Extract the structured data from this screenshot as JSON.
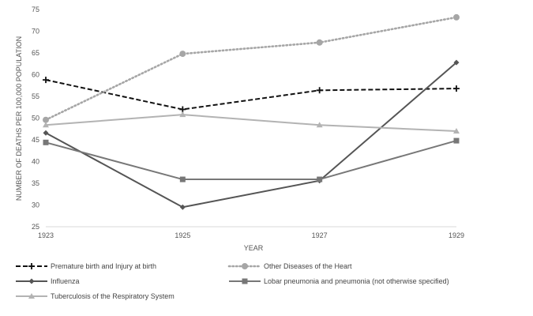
{
  "chart_data": {
    "type": "line",
    "title": "",
    "xlabel": "YEAR",
    "ylabel": "NUMBER OF DEATHS PER 100,000 POPULATION",
    "categories": [
      "1923",
      "1925",
      "1927",
      "1929"
    ],
    "ylim": [
      25,
      75
    ],
    "yticks": [
      25,
      30,
      35,
      40,
      45,
      50,
      55,
      60,
      65,
      70,
      75
    ],
    "grid": false,
    "legend_position": "bottom",
    "series": [
      {
        "name": "Premature birth and Injury at birth",
        "values": [
          58.8,
          52.0,
          56.4,
          56.8
        ],
        "color": "#111111",
        "dash": "dashed",
        "marker": "plus"
      },
      {
        "name": "Other Diseases of the Heart",
        "values": [
          49.6,
          64.8,
          67.4,
          73.2
        ],
        "color": "#a6a6a6",
        "dash": "dotted",
        "marker": "circle"
      },
      {
        "name": "Influenza",
        "values": [
          46.6,
          29.5,
          35.6,
          62.8
        ],
        "color": "#555555",
        "dash": "solid",
        "marker": "diamond"
      },
      {
        "name": "Lobar pneumonia and pneumonia (not otherwise specified)",
        "values": [
          44.4,
          35.9,
          35.9,
          44.8
        ],
        "color": "#777777",
        "dash": "solid",
        "marker": "square"
      },
      {
        "name": "Tuberculosis of the Respiratory System",
        "values": [
          48.4,
          50.8,
          48.4,
          47.0
        ],
        "color": "#b3b3b3",
        "dash": "solid",
        "marker": "triangle"
      }
    ]
  }
}
